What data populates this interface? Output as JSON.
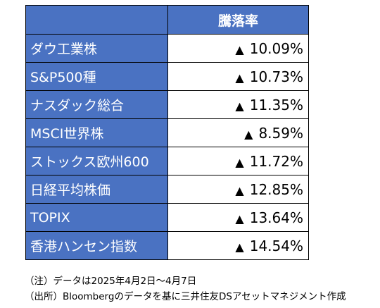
{
  "header": {
    "label": "騰落率"
  },
  "rows": [
    {
      "name": "ダウ工業株",
      "marker": "▲",
      "value": "10.09%"
    },
    {
      "name": "S&P500種",
      "marker": "▲",
      "value": "10.73%"
    },
    {
      "name": "ナスダック総合",
      "marker": "▲",
      "value": "11.35%"
    },
    {
      "name": "MSCI世界株",
      "marker": "▲",
      "value": "8.59%"
    },
    {
      "name": "ストックス欧州600",
      "marker": "▲",
      "value": "11.72%"
    },
    {
      "name": "日経平均株価",
      "marker": "▲",
      "value": "12.85%"
    },
    {
      "name": "TOPIX",
      "marker": "▲",
      "value": "13.64%"
    },
    {
      "name": "香港ハンセン指数",
      "marker": "▲",
      "value": "14.54%"
    }
  ],
  "notes": [
    "（注）データは2025年4月2日～4月7日",
    "（出所）Bloombergのデータを基に三井住友DSアセットマネジメント作成"
  ],
  "colors": {
    "header_bg": "#4a72c2",
    "header_text": "#ffffff",
    "value_bg": "#ffffff"
  }
}
